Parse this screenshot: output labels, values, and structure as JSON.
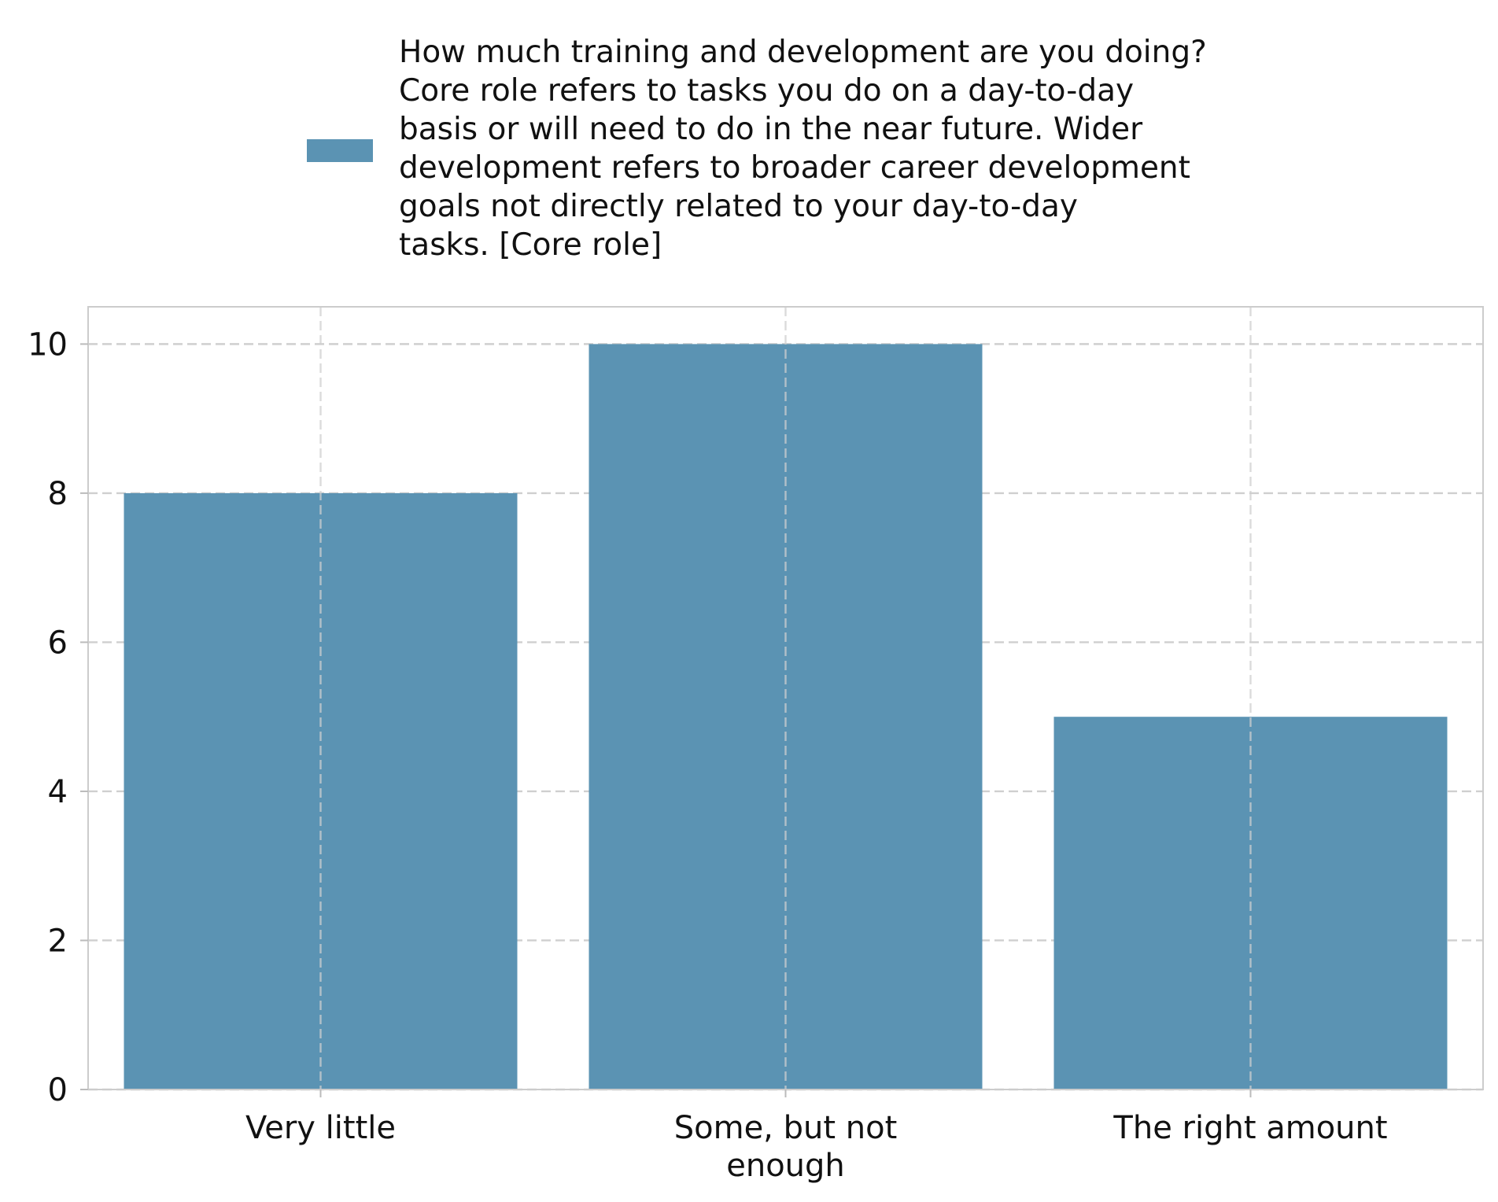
{
  "chart_data": {
    "type": "bar",
    "categories": [
      "Very little",
      "Some, but not enough",
      "The right amount"
    ],
    "category_label_lines": [
      [
        "Very little"
      ],
      [
        "Some, but not",
        "enough"
      ],
      [
        "The right amount"
      ]
    ],
    "series": [
      {
        "name": "How much training and development are you doing? Core role refers to tasks you do on a day-to-day basis or will need to do in the near future. Wider development refers to broader career development goals not directly related to your day-to-day tasks. [Core role]",
        "values": [
          8,
          10,
          5
        ],
        "color": "#5b93b3"
      }
    ],
    "legend": {
      "position": "top-center",
      "lines": [
        "How much training and development are you doing?",
        "Core role refers to tasks you do on a day-to-day",
        "basis or will need to do in the near future. Wider",
        "development refers to broader career development",
        "goals not directly related to your day-to-day",
        "tasks. [Core role]"
      ]
    },
    "title": "",
    "xlabel": "",
    "ylabel": "",
    "ylim": [
      0,
      10.5
    ],
    "yticks": [
      0,
      2,
      4,
      6,
      8,
      10
    ],
    "grid": true,
    "colors": {
      "bar": "#5b93b3",
      "grid": "#cfcfcf",
      "frame": "#cccccc"
    }
  }
}
